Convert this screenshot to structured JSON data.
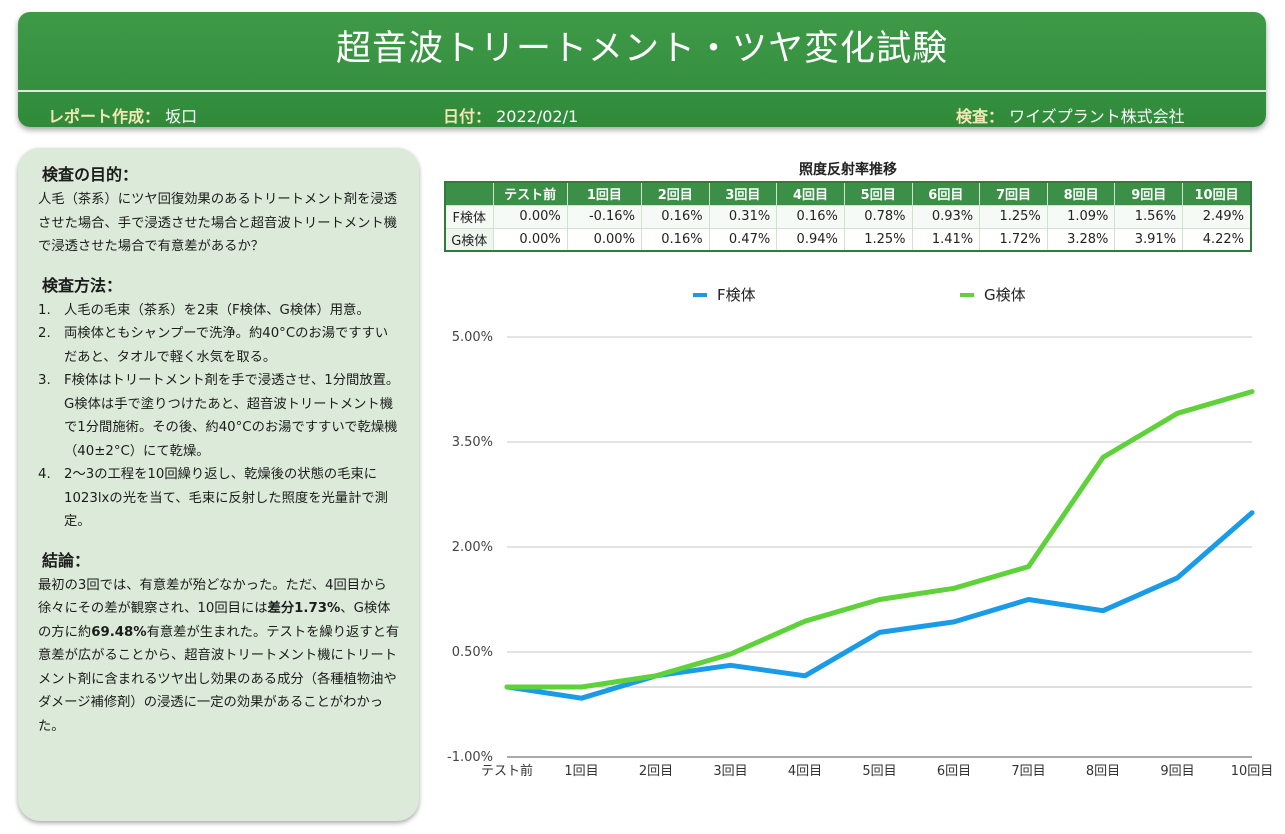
{
  "header": {
    "title": "超音波トリートメント・ツヤ変化試験",
    "author_label": "レポート作成：",
    "author": "坂口",
    "date_label": "日付：",
    "date": "2022/02/1",
    "inspector_label": "検査：",
    "inspector": "ワイズプラント株式会社"
  },
  "panel": {
    "purpose_title": "検査の目的：",
    "purpose_text": "人毛（茶系）にツヤ回復効果のあるトリートメント剤を浸透させた場合、手で浸透させた場合と超音波トリートメント機で浸透させた場合で有意差があるか？",
    "method_title": "検査方法：",
    "methods": [
      {
        "num": "1.",
        "text": "人毛の毛束（茶系）を2束（F検体、G検体）用意。"
      },
      {
        "num": "2.",
        "text": "両検体ともシャンプーで洗浄。約40°Cのお湯ですすいだあと、タオルで軽く水気を取る。"
      },
      {
        "num": "3.",
        "text": "F検体はトリートメント剤を手で浸透させ、1分間放置。G検体は手で塗りつけたあと、超音波トリートメント機で1分間施術。その後、約40°Cのお湯ですすいで乾燥機（40±2°C）にて乾燥。"
      },
      {
        "num": "4.",
        "text": "2〜3の工程を10回繰り返し、乾燥後の状態の毛束に1023lxの光を当て、毛束に反射した照度を光量計で測定。"
      }
    ],
    "conclusion_title": "結論：",
    "conclusion_a": "最初の3回では、有意差が殆どなかった。ただ、4回目から徐々にその差が観察され、10回目には",
    "conclusion_b1": "差分1.73%",
    "conclusion_c": "、G検体の方に約",
    "conclusion_b2": "69.48%",
    "conclusion_d": "有意差が生まれた。テストを繰り返すと有意差が広がることから、超音波トリートメント機にトリートメント剤に含まれるツヤ出し効果のある成分（各種植物油やダメージ補修剤）の浸透に一定の効果があることがわかった。"
  },
  "table": {
    "title": "照度反射率推移",
    "columns": [
      "テスト前",
      "1回目",
      "2回目",
      "3回目",
      "4回目",
      "5回目",
      "6回目",
      "7回目",
      "8回目",
      "9回目",
      "10回目"
    ],
    "rows": [
      {
        "label": "F検体",
        "cells": [
          "0.00%",
          "-0.16%",
          "0.16%",
          "0.31%",
          "0.16%",
          "0.78%",
          "0.93%",
          "1.25%",
          "1.09%",
          "1.56%",
          "2.49%"
        ]
      },
      {
        "label": "G検体",
        "cells": [
          "0.00%",
          "0.00%",
          "0.16%",
          "0.47%",
          "0.94%",
          "1.25%",
          "1.41%",
          "1.72%",
          "3.28%",
          "3.91%",
          "4.22%"
        ]
      }
    ]
  },
  "chart_data": {
    "type": "line",
    "title": "",
    "categories": [
      "テスト前",
      "1回目",
      "2回目",
      "3回目",
      "4回目",
      "5回目",
      "6回目",
      "7回目",
      "8回目",
      "9回目",
      "10回目"
    ],
    "series": [
      {
        "name": "F検体",
        "color": "#1a9be8",
        "values": [
          0.0,
          -0.16,
          0.16,
          0.31,
          0.16,
          0.78,
          0.93,
          1.25,
          1.09,
          1.56,
          2.49
        ]
      },
      {
        "name": "G検体",
        "color": "#5fd13a",
        "values": [
          0.0,
          0.0,
          0.16,
          0.47,
          0.94,
          1.25,
          1.41,
          1.72,
          3.28,
          3.91,
          4.22
        ]
      }
    ],
    "ylim": [
      -1.0,
      5.0
    ],
    "yticks": [
      -1.0,
      0.5,
      2.0,
      3.5,
      5.0
    ],
    "ytick_labels": [
      "-1.00%",
      "0.50%",
      "2.00%",
      "3.50%",
      "5.00%"
    ],
    "xlabel": "",
    "ylabel": "",
    "legend": "top",
    "grid": true
  }
}
